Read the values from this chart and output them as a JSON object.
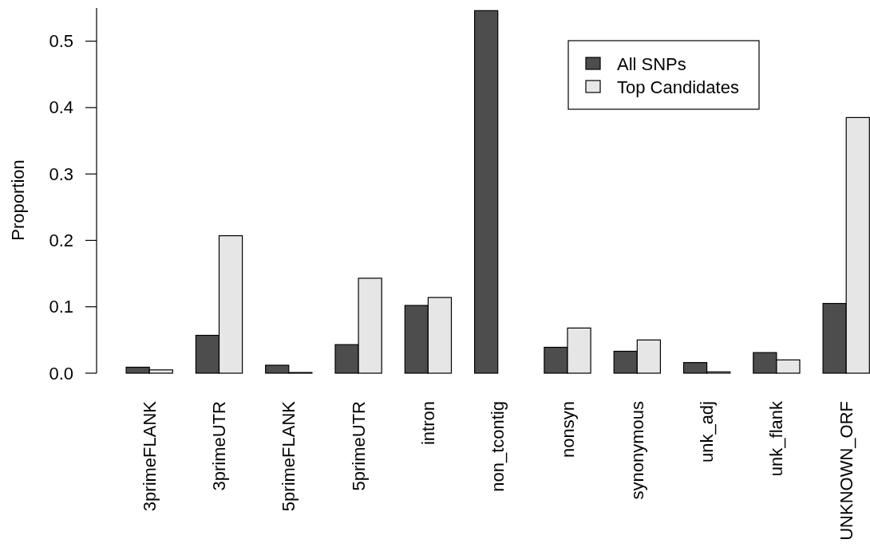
{
  "chart_data": {
    "type": "bar",
    "ylabel": "Proportion",
    "categories": [
      "3primeFLANK",
      "3primeUTR",
      "5primeFLANK",
      "5primeUTR",
      "intron",
      "non_tcontig",
      "nonsyn",
      "synonymous",
      "unk_adj",
      "unk_flank",
      "UNKNOWN_ORF"
    ],
    "series": [
      {
        "name": "All SNPs",
        "color": "#4d4d4d",
        "values": [
          0.009,
          0.057,
          0.012,
          0.043,
          0.102,
          0.546,
          0.039,
          0.033,
          0.016,
          0.031,
          0.105
        ]
      },
      {
        "name": "Top Candidates",
        "color": "#e6e6e6",
        "values": [
          0.005,
          0.207,
          0.001,
          0.143,
          0.114,
          null,
          0.068,
          0.05,
          0.002,
          0.02,
          0.385
        ]
      }
    ],
    "ylim": [
      0,
      0.55
    ],
    "yticks": [
      {
        "value": 0,
        "label": "0.0"
      },
      0.1,
      0.2,
      0.3,
      0.4,
      0.5
    ],
    "legend": "top right"
  }
}
